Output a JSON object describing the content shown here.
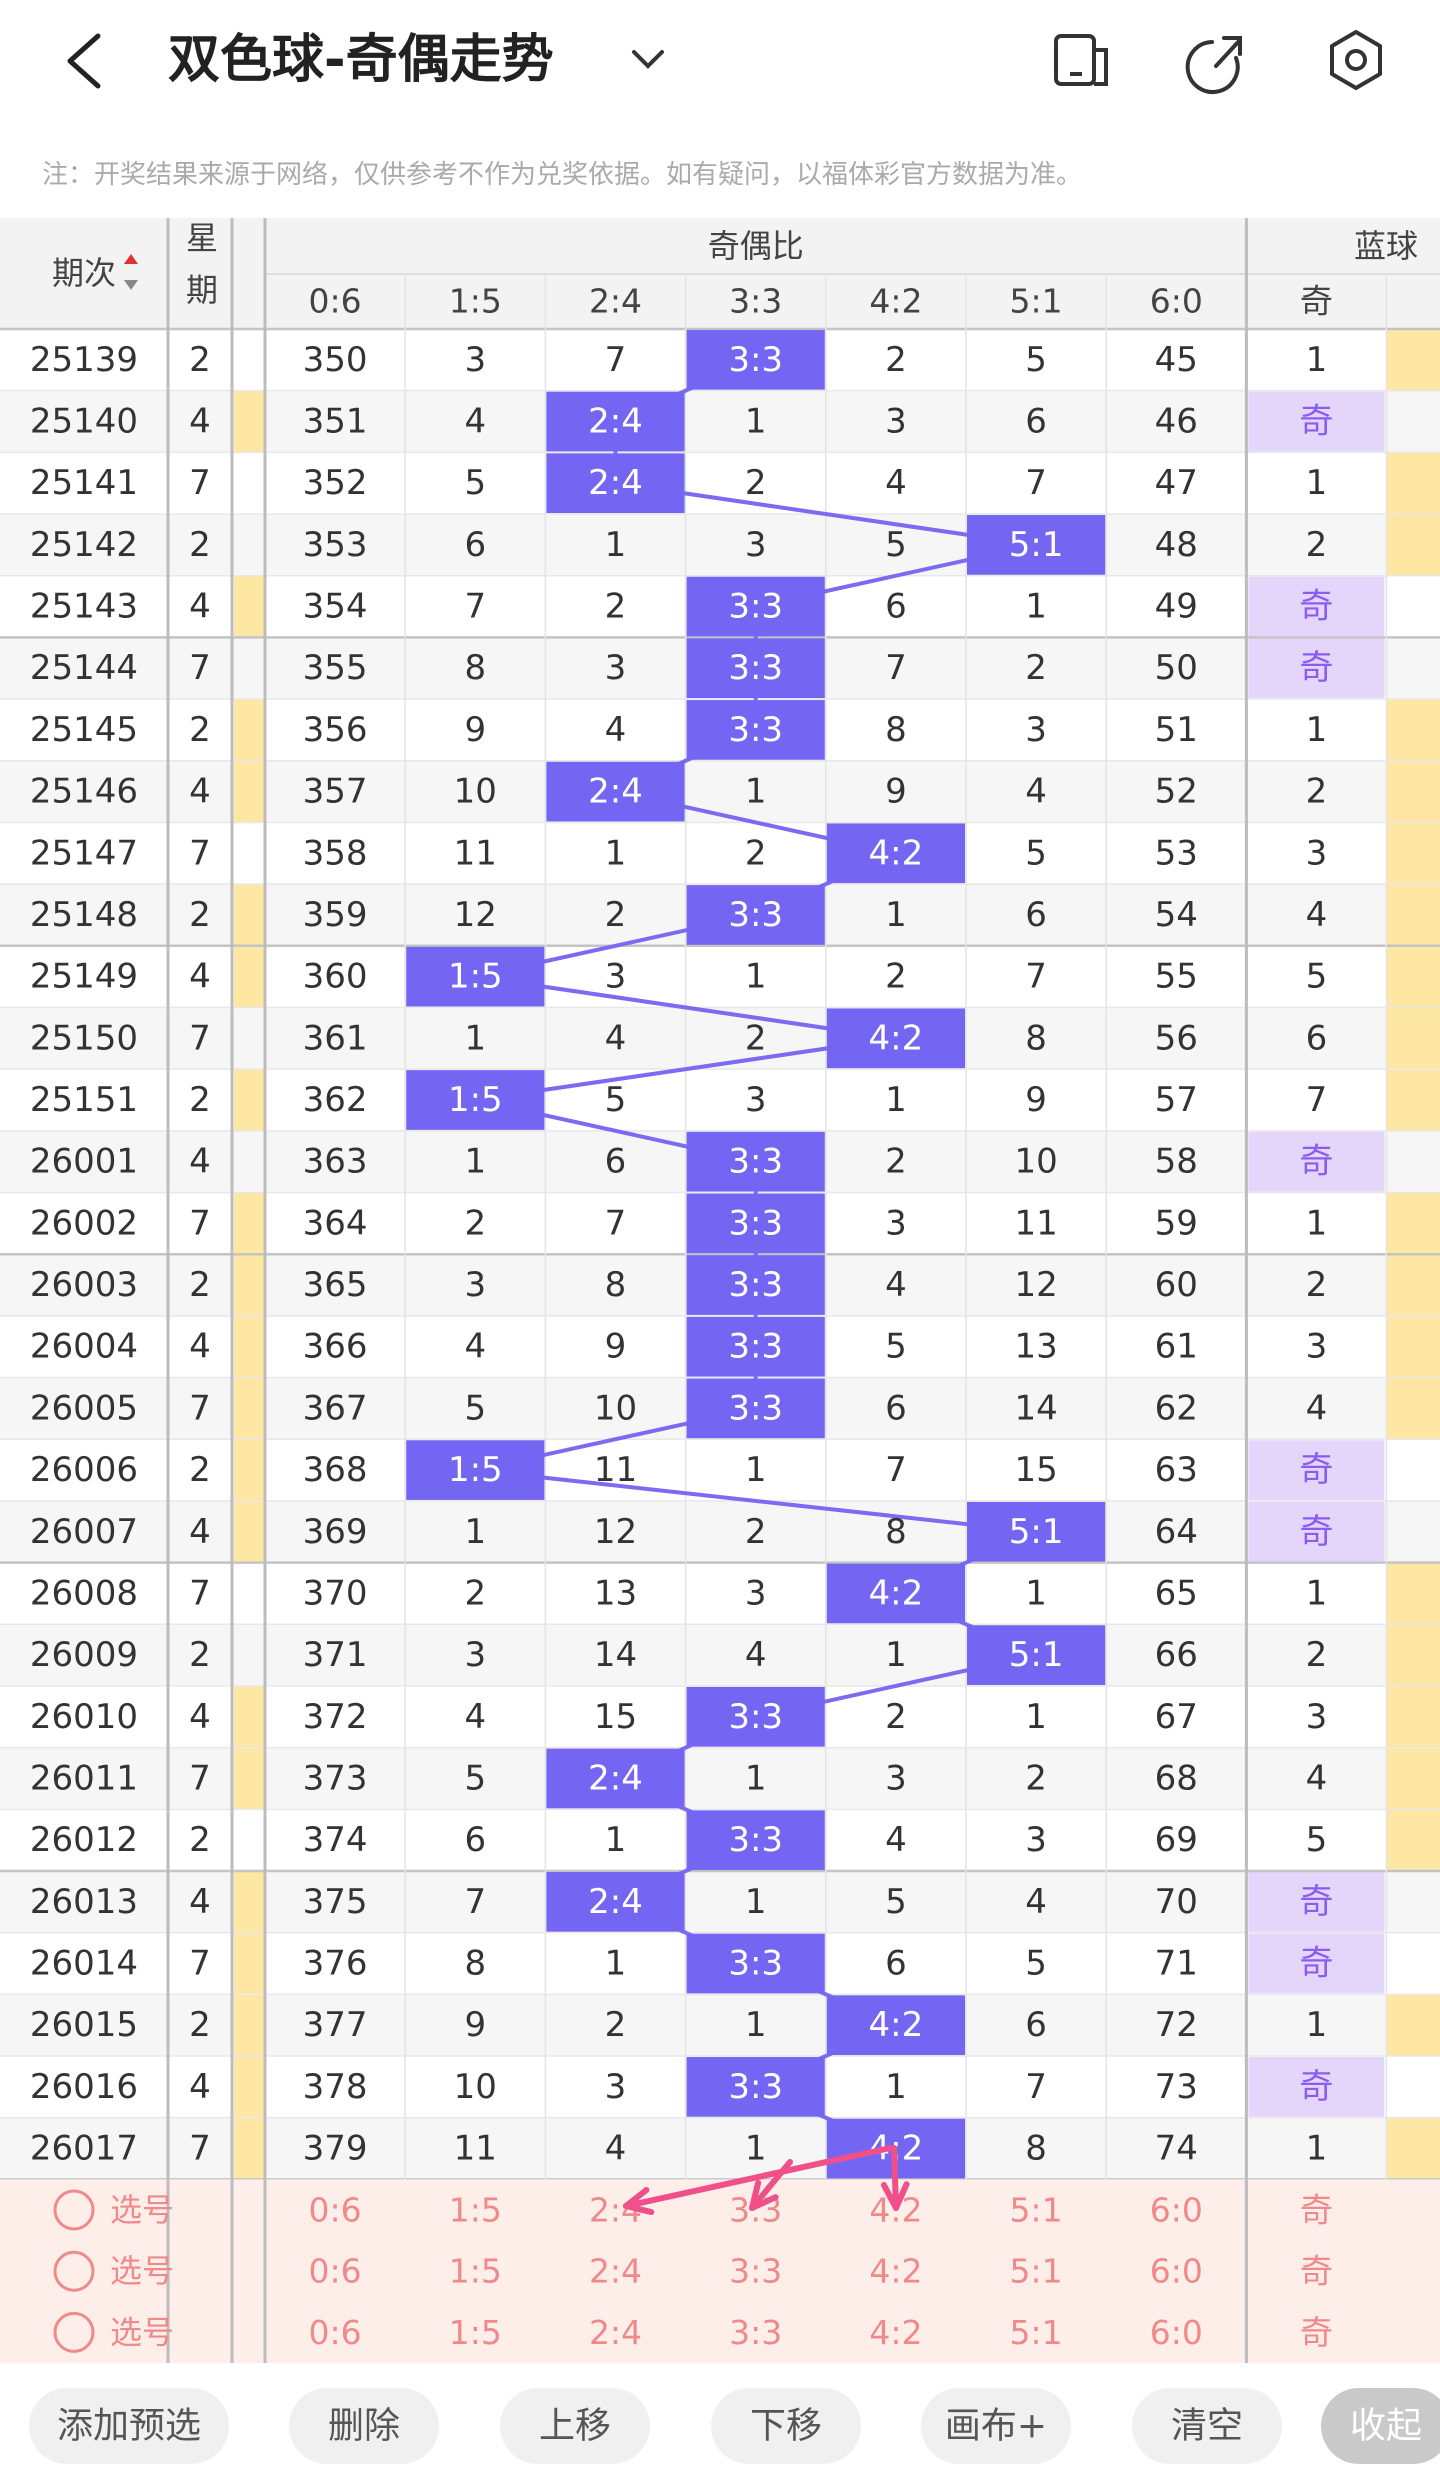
{
  "header": {
    "title": "双色球-奇偶走势"
  },
  "note": "注：开奖结果来源于网络，仅供参考不作为兑奖依据。如有疑问，以福体彩官方数据为准。",
  "table": {
    "col_period": "期次",
    "col_week": "星期",
    "group_ratio": "奇偶比",
    "group_blue": "蓝球",
    "ratio_columns": [
      "0:6",
      "1:5",
      "2:4",
      "3:3",
      "4:2",
      "5:1",
      "6:0"
    ],
    "blue_column": "奇",
    "weekday_marks": [
      false,
      true,
      false,
      false,
      true,
      false,
      true,
      true,
      false,
      true,
      true,
      false,
      true,
      false,
      true,
      true,
      true,
      true,
      true,
      true,
      false,
      false,
      true,
      true,
      false,
      true,
      true,
      true,
      true,
      true
    ],
    "rows": [
      {
        "period": 25139,
        "weekday": 2,
        "values": [
          350,
          3,
          7,
          "3:3",
          2,
          5,
          45
        ],
        "blue": 1
      },
      {
        "period": 25140,
        "weekday": 4,
        "values": [
          351,
          4,
          "2:4",
          1,
          3,
          6,
          46
        ],
        "blue": "奇"
      },
      {
        "period": 25141,
        "weekday": 7,
        "values": [
          352,
          5,
          "2:4",
          2,
          4,
          7,
          47
        ],
        "blue": 1
      },
      {
        "period": 25142,
        "weekday": 2,
        "values": [
          353,
          6,
          1,
          3,
          5,
          "5:1",
          48
        ],
        "blue": 2
      },
      {
        "period": 25143,
        "weekday": 4,
        "values": [
          354,
          7,
          2,
          "3:3",
          6,
          1,
          49
        ],
        "blue": "奇"
      },
      {
        "period": 25144,
        "weekday": 7,
        "values": [
          355,
          8,
          3,
          "3:3",
          7,
          2,
          50
        ],
        "blue": "奇"
      },
      {
        "period": 25145,
        "weekday": 2,
        "values": [
          356,
          9,
          4,
          "3:3",
          8,
          3,
          51
        ],
        "blue": 1
      },
      {
        "period": 25146,
        "weekday": 4,
        "values": [
          357,
          10,
          "2:4",
          1,
          9,
          4,
          52
        ],
        "blue": 2
      },
      {
        "period": 25147,
        "weekday": 7,
        "values": [
          358,
          11,
          1,
          2,
          "4:2",
          5,
          53
        ],
        "blue": 3
      },
      {
        "period": 25148,
        "weekday": 2,
        "values": [
          359,
          12,
          2,
          "3:3",
          1,
          6,
          54
        ],
        "blue": 4
      },
      {
        "period": 25149,
        "weekday": 4,
        "values": [
          360,
          "1:5",
          3,
          1,
          2,
          7,
          55
        ],
        "blue": 5
      },
      {
        "period": 25150,
        "weekday": 7,
        "values": [
          361,
          1,
          4,
          2,
          "4:2",
          8,
          56
        ],
        "blue": 6
      },
      {
        "period": 25151,
        "weekday": 2,
        "values": [
          362,
          "1:5",
          5,
          3,
          1,
          9,
          57
        ],
        "blue": 7
      },
      {
        "period": 26001,
        "weekday": 4,
        "values": [
          363,
          1,
          6,
          "3:3",
          2,
          10,
          58
        ],
        "blue": "奇"
      },
      {
        "period": 26002,
        "weekday": 7,
        "values": [
          364,
          2,
          7,
          "3:3",
          3,
          11,
          59
        ],
        "blue": 1
      },
      {
        "period": 26003,
        "weekday": 2,
        "values": [
          365,
          3,
          8,
          "3:3",
          4,
          12,
          60
        ],
        "blue": 2
      },
      {
        "period": 26004,
        "weekday": 4,
        "values": [
          366,
          4,
          9,
          "3:3",
          5,
          13,
          61
        ],
        "blue": 3
      },
      {
        "period": 26005,
        "weekday": 7,
        "values": [
          367,
          5,
          10,
          "3:3",
          6,
          14,
          62
        ],
        "blue": 4
      },
      {
        "period": 26006,
        "weekday": 2,
        "values": [
          368,
          "1:5",
          11,
          1,
          7,
          15,
          63
        ],
        "blue": "奇"
      },
      {
        "period": 26007,
        "weekday": 4,
        "values": [
          369,
          1,
          12,
          2,
          8,
          "5:1",
          64
        ],
        "blue": "奇"
      },
      {
        "period": 26008,
        "weekday": 7,
        "values": [
          370,
          2,
          13,
          3,
          "4:2",
          1,
          65
        ],
        "blue": 1
      },
      {
        "period": 26009,
        "weekday": 2,
        "values": [
          371,
          3,
          14,
          4,
          1,
          "5:1",
          66
        ],
        "blue": 2
      },
      {
        "period": 26010,
        "weekday": 4,
        "values": [
          372,
          4,
          15,
          "3:3",
          2,
          1,
          67
        ],
        "blue": 3
      },
      {
        "period": 26011,
        "weekday": 7,
        "values": [
          373,
          5,
          "2:4",
          1,
          3,
          2,
          68
        ],
        "blue": 4
      },
      {
        "period": 26012,
        "weekday": 2,
        "values": [
          374,
          6,
          1,
          "3:3",
          4,
          3,
          69
        ],
        "blue": 5
      },
      {
        "period": 26013,
        "weekday": 4,
        "values": [
          375,
          7,
          "2:4",
          1,
          5,
          4,
          70
        ],
        "blue": "奇"
      },
      {
        "period": 26014,
        "weekday": 7,
        "values": [
          376,
          8,
          1,
          "3:3",
          6,
          5,
          71
        ],
        "blue": "奇"
      },
      {
        "period": 26015,
        "weekday": 2,
        "values": [
          377,
          9,
          2,
          1,
          "4:2",
          6,
          72
        ],
        "blue": 1
      },
      {
        "period": 26016,
        "weekday": 4,
        "values": [
          378,
          10,
          3,
          "3:3",
          1,
          7,
          73
        ],
        "blue": "奇"
      },
      {
        "period": 26017,
        "weekday": 7,
        "values": [
          379,
          11,
          4,
          1,
          "4:2",
          8,
          74
        ],
        "blue": 1
      }
    ]
  },
  "selection": {
    "rows": [
      {
        "label": "选号",
        "cells": [
          "0:6",
          "1:5",
          "2:4",
          "3:3",
          "4:2",
          "5:1",
          "6:0",
          "奇"
        ]
      },
      {
        "label": "选号",
        "cells": [
          "0:6",
          "1:5",
          "2:4",
          "3:3",
          "4:2",
          "5:1",
          "6:0",
          "奇"
        ]
      },
      {
        "label": "选号",
        "cells": [
          "0:6",
          "1:5",
          "2:4",
          "3:3",
          "4:2",
          "5:1",
          "6:0",
          "奇"
        ]
      }
    ]
  },
  "buttons": [
    "添加预选",
    "删除",
    "上移",
    "下移",
    "画布+",
    "清空",
    "收起"
  ]
}
